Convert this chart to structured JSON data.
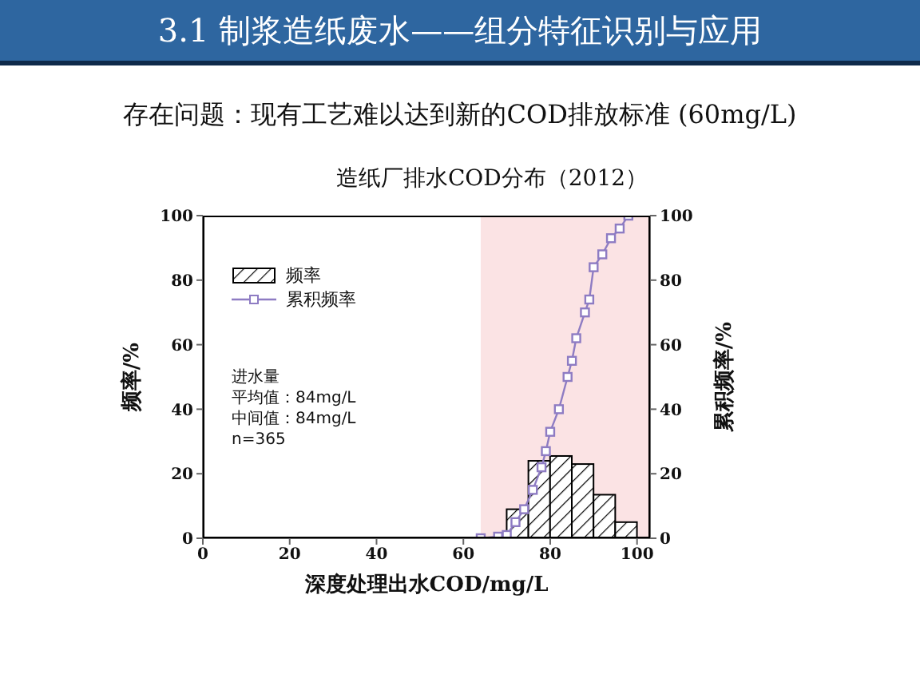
{
  "chart_data": {
    "type": "histogram",
    "title": "造纸厂排水COD分布（2012）",
    "xlabel": "深度处理出水COD/mg/L",
    "ylabel": "频率/%",
    "y2label": "累积频率/%",
    "annotations": [
      "3.1 制浆造纸废水——组分特征识别与应用",
      "存在问题：现有工艺难以达到新的COD排放标准 (60mg/L)",
      "进水量",
      "平均值：84mg/L",
      "中间值：84mg/L",
      "n=365"
    ],
    "xlim": [
      0,
      103
    ],
    "xticks": [
      0,
      20,
      40,
      60,
      80,
      100
    ],
    "ylim": [
      0,
      100
    ],
    "yticks": [
      0,
      20,
      40,
      60,
      80,
      100
    ],
    "y2lim": [
      0,
      100
    ],
    "y2ticks": [
      0,
      20,
      40,
      60,
      80,
      100
    ],
    "legend": "top left",
    "grid": false,
    "bands": [
      {
        "axis": "x",
        "from": 64,
        "to": 103,
        "color": "#fbe3e4"
      }
    ],
    "series": [
      {
        "name": "频率",
        "color": "#000000",
        "bins": [
          70,
          75,
          80,
          85,
          90,
          95,
          100
        ],
        "values": [
          9,
          24,
          25.5,
          23,
          13.5,
          5
        ]
      },
      {
        "name": "累积频率",
        "type": "line",
        "axis": "y2",
        "marker": "square",
        "color": "#8e7cc3",
        "x": [
          64,
          68,
          70,
          72,
          74,
          76,
          78,
          79,
          80,
          82,
          84,
          85,
          86,
          88,
          89,
          90,
          92,
          94,
          96,
          98
        ],
        "values": [
          0,
          0.5,
          1,
          5,
          9,
          15,
          22,
          27,
          33,
          40,
          50,
          55,
          62,
          70,
          74,
          84,
          88,
          93,
          96,
          100
        ]
      }
    ]
  }
}
